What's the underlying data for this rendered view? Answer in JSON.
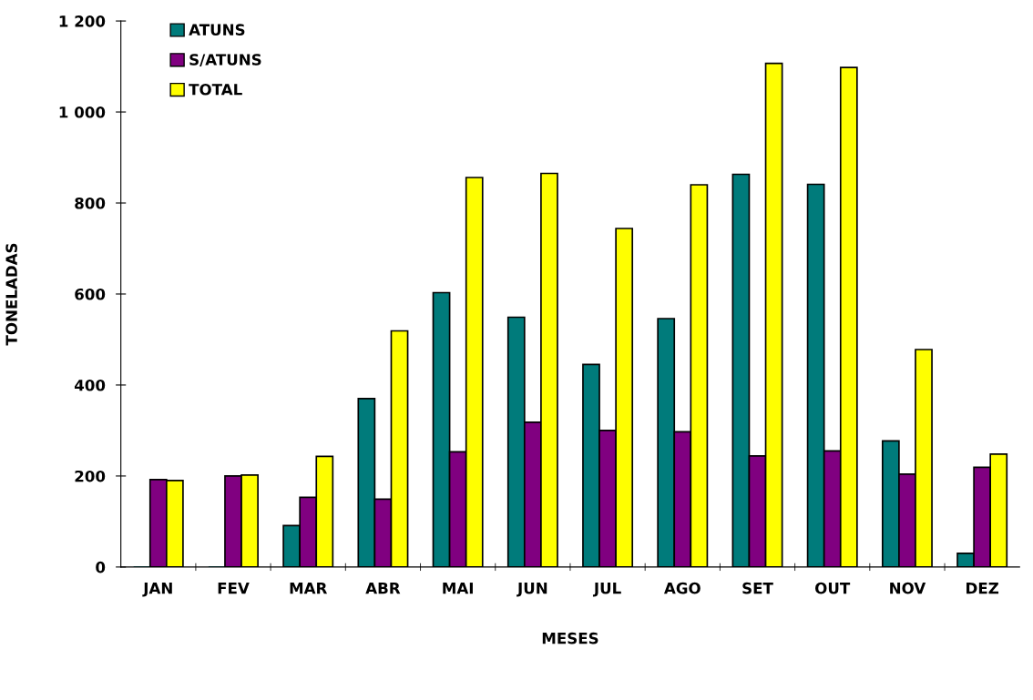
{
  "chart_data": {
    "type": "bar",
    "xlabel": "MESES",
    "ylabel": "TONELADAS",
    "categories": [
      "JAN",
      "FEV",
      "MAR",
      "ABR",
      "MAI",
      "JUN",
      "JUL",
      "AGO",
      "SET",
      "OUT",
      "NOV",
      "DEZ"
    ],
    "series": [
      {
        "name": "ATUNS",
        "color": "#007b7b",
        "values": [
          0,
          0,
          91,
          370,
          603,
          549,
          445,
          546,
          863,
          841,
          277,
          30
        ]
      },
      {
        "name": "S/ATUNS",
        "color": "#800080",
        "values": [
          192,
          200,
          153,
          149,
          253,
          318,
          300,
          297,
          244,
          255,
          204,
          219
        ]
      },
      {
        "name": "TOTAL",
        "color": "#ffff00",
        "values": [
          190,
          202,
          243,
          519,
          856,
          865,
          744,
          840,
          1107,
          1098,
          478,
          248
        ]
      }
    ],
    "ylim": [
      0,
      1200
    ],
    "yticks": [
      0,
      200,
      400,
      600,
      800,
      {
        "value": 1000,
        "label": "1 000"
      },
      {
        "value": 1200,
        "label": "1 200"
      }
    ],
    "grid": false,
    "legend": "top left"
  }
}
